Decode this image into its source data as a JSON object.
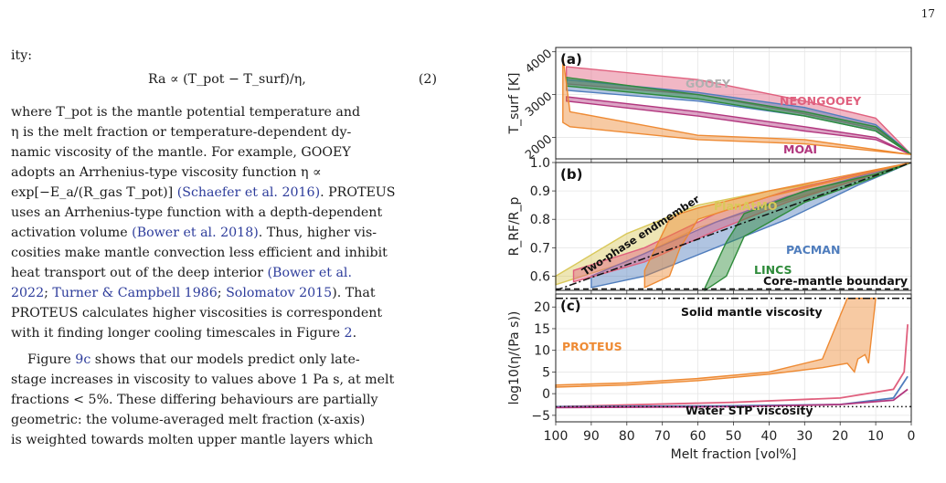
{
  "page_number": "17",
  "text": {
    "l1": "ity:",
    "eq_formula": "Ra ∝ (T_pot − T_surf)/η,",
    "eq_number": "(2)",
    "p1_l1": "where T_pot is the mantle potential temperature and",
    "p1_l2": "η is the melt fraction or temperature-dependent dy-",
    "p1_l3": "namic viscosity of the mantle. For example, GOOEY",
    "p1_l4": "adopts an Arrhenius-type viscosity function η ∝",
    "p1_l5a": "exp[−E_a/(R_gas T_pot)]",
    "p1_l5cite": "(Schaefer et al. 2016)",
    "p1_l5b": ". PROTEUS",
    "p1_l6": "uses an Arrhenius-type function with a depth-dependent",
    "p1_l7a": "activation volume",
    "p1_l7cite": "(Bower et al. 2018)",
    "p1_l7b": ". Thus, higher vis-",
    "p1_l8": "cosities make mantle convection less efficient and inhibit",
    "p1_l9a": "heat transport out of the deep interior",
    "p1_l9cite": "(Bower et al.",
    "p1_l10cite1": "2022",
    "p1_l10cite2": "Turner & Campbell 1986",
    "p1_l10cite3": "Solomatov 2015",
    "p1_l10b": "). That",
    "p1_l11": "PROTEUS calculates higher viscosities is correspondent",
    "p1_l12a": "with it finding longer cooling timescales in Figure ",
    "p1_l12cite": "2",
    "p2_l1a": "Figure ",
    "p2_l1cite": "9c",
    "p2_l1b": " shows that our models predict only late-",
    "p2_l2": "stage increases in viscosity to values above 1 Pa s, at melt",
    "p2_l3": "fractions < 5%. These differing behaviours are partially",
    "p2_l4": "geometric: the volume-averaged melt fraction (x-axis)",
    "p2_l5": "is weighted towards molten upper mantle layers which"
  },
  "chart_data": [
    {
      "panel": "(a)",
      "type": "area",
      "ylabel": "T_surf [K]",
      "yticks": [
        2000,
        3000,
        4000
      ],
      "xlim": [
        100,
        0
      ],
      "annotations": [
        "GOOEY",
        "NEONGOOEY",
        "MOAI"
      ],
      "series": [
        {
          "name": "NEONGOOEY",
          "color": "#e0607e",
          "x": [
            97,
            60,
            30,
            10,
            0
          ],
          "y_high": [
            3650,
            3350,
            2850,
            2450,
            1600
          ],
          "y_low": [
            3250,
            3000,
            2550,
            2200,
            1600
          ]
        },
        {
          "name": "GOOEY",
          "color": "#4f7dbd",
          "x": [
            97,
            60,
            30,
            10,
            0
          ],
          "y_high": [
            3350,
            3050,
            2700,
            2300,
            1600
          ],
          "y_low": [
            3100,
            2850,
            2500,
            2150,
            1600
          ]
        },
        {
          "name": "MOAI",
          "color": "#b2367e",
          "x": [
            97,
            60,
            30,
            10,
            0
          ],
          "y_high": [
            2950,
            2600,
            2250,
            2000,
            1600
          ],
          "y_low": [
            2850,
            2500,
            2150,
            1950,
            1600
          ]
        },
        {
          "name": "LINCS",
          "color": "#2e8b3a",
          "x": [
            97,
            60,
            30,
            10,
            0
          ],
          "y_high": [
            3400,
            3000,
            2600,
            2250,
            1600
          ],
          "y_low": [
            3200,
            2900,
            2500,
            2150,
            1600
          ]
        },
        {
          "name": "PROTEUS",
          "color": "#ee8a33",
          "x": [
            98,
            96,
            60,
            30,
            0
          ],
          "y_high": [
            3900,
            2600,
            2050,
            1950,
            1600
          ],
          "y_low": [
            2350,
            2250,
            1950,
            1850,
            1600
          ]
        }
      ]
    },
    {
      "panel": "(b)",
      "type": "area",
      "ylabel": "R_RF/R_p",
      "yticks": [
        0.6,
        0.7,
        0.8,
        0.9,
        1.0
      ],
      "ylim": [
        0.55,
        1.0
      ],
      "xlim": [
        100,
        0
      ],
      "annotations": [
        "PlanAtMO",
        "PACMAN",
        "LINCS",
        "Two-phase endmember",
        "Core-mantle boundary"
      ],
      "series": [
        {
          "name": "PlanAtMO",
          "color": "#d9c85a",
          "x": [
            100,
            80,
            60,
            40,
            20,
            0
          ],
          "y_high": [
            0.6,
            0.75,
            0.85,
            0.9,
            0.94,
            1.0
          ],
          "y_low": [
            0.57,
            0.65,
            0.77,
            0.85,
            0.92,
            1.0
          ]
        },
        {
          "name": "PACMAN",
          "color": "#4f7dbd",
          "x": [
            90,
            75,
            55,
            35,
            15,
            0
          ],
          "y_high": [
            0.6,
            0.68,
            0.79,
            0.88,
            0.95,
            1.0
          ],
          "y_low": [
            0.56,
            0.6,
            0.7,
            0.8,
            0.92,
            1.0
          ]
        },
        {
          "name": "NEONGOOEY",
          "color": "#e0607e",
          "x": [
            95,
            75,
            55,
            35,
            15,
            0
          ],
          "y_high": [
            0.62,
            0.7,
            0.82,
            0.9,
            0.96,
            1.0
          ],
          "y_low": [
            0.58,
            0.65,
            0.76,
            0.86,
            0.94,
            1.0
          ]
        },
        {
          "name": "LINCS",
          "color": "#2e8b3a",
          "x": [
            58,
            52,
            47,
            30,
            10,
            0
          ],
          "y_high": [
            0.56,
            0.72,
            0.82,
            0.9,
            0.96,
            1.0
          ],
          "y_low": [
            0.55,
            0.6,
            0.74,
            0.86,
            0.95,
            1.0
          ]
        },
        {
          "name": "PROTEUS",
          "color": "#ee8a33",
          "x": [
            75,
            68,
            65,
            60,
            40,
            0
          ],
          "y_high": [
            0.62,
            0.8,
            0.82,
            0.84,
            0.9,
            1.0
          ],
          "y_low": [
            0.56,
            0.6,
            0.7,
            0.8,
            0.88,
            1.0
          ]
        }
      ],
      "lines": [
        {
          "name": "Two-phase endmember",
          "style": "dashdot",
          "x": [
            100,
            0
          ],
          "y": [
            0.55,
            1.0
          ]
        },
        {
          "name": "Core-mantle boundary",
          "style": "dashed",
          "y": 0.555
        }
      ]
    },
    {
      "panel": "(c)",
      "type": "line",
      "ylabel": "log10(η/(Pa s))",
      "xlabel": "Melt fraction [vol%]",
      "yticks": [
        -5,
        0,
        5,
        10,
        15,
        20
      ],
      "ylim": [
        -6.5,
        23
      ],
      "xlim": [
        100,
        0
      ],
      "xticks": [
        100,
        90,
        80,
        70,
        60,
        50,
        40,
        30,
        20,
        10,
        0
      ],
      "annotations": [
        "PROTEUS",
        "Solid mantle viscosity",
        "Water STP viscosity"
      ],
      "series": [
        {
          "name": "PROTEUS",
          "color": "#ee8a33",
          "x": [
            100,
            80,
            60,
            40,
            25,
            18,
            16,
            15,
            13,
            12,
            10
          ],
          "y_high": [
            2,
            2.5,
            3.5,
            5,
            8,
            22,
            22,
            22,
            22,
            22,
            22
          ],
          "y_low": [
            1.5,
            2,
            3,
            4.5,
            6,
            7,
            5,
            8,
            9,
            7,
            22
          ]
        },
        {
          "name": "NEONGOOEY",
          "color": "#e0607e",
          "x": [
            100,
            50,
            20,
            5,
            2,
            1
          ],
          "y": [
            -3,
            -2,
            -1,
            1,
            5,
            16
          ]
        },
        {
          "name": "GOOEY",
          "color": "#4f7dbd",
          "x": [
            100,
            50,
            20,
            5,
            1
          ],
          "y": [
            -3,
            -2.8,
            -2.5,
            -1,
            4
          ]
        },
        {
          "name": "MOAI",
          "color": "#b2367e",
          "x": [
            100,
            50,
            20,
            5,
            1
          ],
          "y": [
            -3.2,
            -3,
            -2.5,
            -1.5,
            1
          ]
        }
      ],
      "lines": [
        {
          "name": "Solid mantle viscosity",
          "style": "dashdot",
          "y": 22
        },
        {
          "name": "Water STP viscosity",
          "style": "dotted",
          "y": -3
        }
      ]
    }
  ]
}
